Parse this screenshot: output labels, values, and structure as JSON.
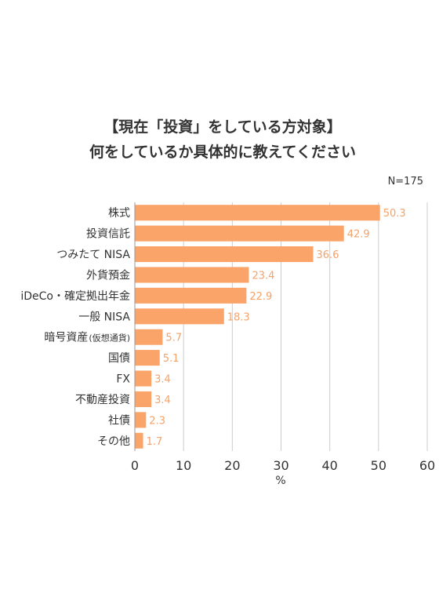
{
  "chart_data": {
    "type": "bar",
    "orientation": "horizontal",
    "title_lines": [
      "【現在「投資」をしている方対象】",
      "何をしているか具体的に教えてください"
    ],
    "sample_size": "N=175",
    "categories": [
      {
        "main": "株式",
        "sub": ""
      },
      {
        "main": "投資信託",
        "sub": ""
      },
      {
        "main": "つみたて NISA",
        "sub": ""
      },
      {
        "main": "外貨預金",
        "sub": ""
      },
      {
        "main": "iDeCo・確定拠出年金",
        "sub": ""
      },
      {
        "main": "一般 NISA",
        "sub": ""
      },
      {
        "main": "暗号資産",
        "sub": "(仮想通貨)"
      },
      {
        "main": "国債",
        "sub": ""
      },
      {
        "main": "FX",
        "sub": ""
      },
      {
        "main": "不動産投資",
        "sub": ""
      },
      {
        "main": "社債",
        "sub": ""
      },
      {
        "main": "その他",
        "sub": ""
      }
    ],
    "values": [
      50.3,
      42.9,
      36.6,
      23.4,
      22.9,
      18.3,
      5.7,
      5.1,
      3.4,
      3.4,
      2.3,
      1.7
    ],
    "value_labels": [
      "50.3",
      "42.9",
      "36.6",
      "23.4",
      "22.9",
      "18.3",
      "5.7",
      "5.1",
      "3.4",
      "3.4",
      "2.3",
      "1.7"
    ],
    "x_ticks": [
      0,
      10,
      20,
      30,
      40,
      50,
      60
    ],
    "x_tick_labels": [
      "0",
      "10",
      "20",
      "30",
      "40",
      "50",
      "60"
    ],
    "xlim": [
      0,
      60
    ],
    "xlabel": "%",
    "grid": "vertical",
    "colors": {
      "bar": "#fba46a",
      "value_label": "#f4a26a",
      "grid": "#cccccc",
      "text": "#333333"
    }
  }
}
